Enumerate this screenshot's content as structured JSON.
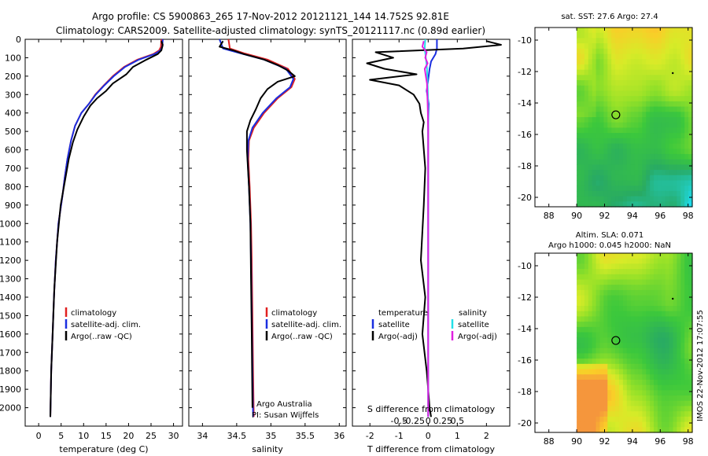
{
  "title_line1": "Argo profile: CS 5900863_265 17-Nov-2012 20121121_144 14.752S 92.81E",
  "title_line2": "Climatology: CARS2009. Satellite-adjusted climatology: synTS_20121117.nc (0.89d earlier)",
  "colors": {
    "climatology": "#e02020",
    "satellite": "#1a2ee0",
    "argo": "#000000",
    "sat_salinity": "#22e0e8",
    "argo_salinity": "#e020e0"
  },
  "chart_data": [
    {
      "id": "temperature",
      "type": "line",
      "xlabel": "temperature (deg C)",
      "ylabel": "",
      "xlim": [
        -3,
        32
      ],
      "ylim": [
        2100,
        0
      ],
      "xticks": [
        "0",
        "5",
        "10",
        "15",
        "20",
        "25",
        "30"
      ],
      "xtick_values": [
        0,
        5,
        10,
        15,
        20,
        25,
        30
      ],
      "yticks": [
        "0",
        "100",
        "200",
        "300",
        "400",
        "500",
        "600",
        "700",
        "800",
        "900",
        "1000",
        "1100",
        "1200",
        "1300",
        "1400",
        "1500",
        "1600",
        "1700",
        "1800",
        "1900",
        "2000"
      ],
      "ytick_values": [
        0,
        100,
        200,
        300,
        400,
        500,
        600,
        700,
        800,
        900,
        1000,
        1100,
        1200,
        1300,
        1400,
        1500,
        1600,
        1700,
        1800,
        1900,
        2000
      ],
      "legend": [
        "climatology",
        "satellite-adj. clim.",
        "Argo(..raw -QC)"
      ],
      "series": [
        {
          "name": "climatology",
          "color": "#e02020",
          "x": [
            27.3,
            27.2,
            26.8,
            25.5,
            22,
            19,
            16.5,
            14.5,
            12.6,
            11.2,
            9.5,
            8.1,
            7.2,
            6.4,
            5.8,
            5.3,
            4.4,
            3.8,
            3.4,
            3.1,
            2.8,
            2.6
          ],
          "y": [
            0,
            40,
            60,
            80,
            110,
            150,
            200,
            250,
            300,
            350,
            400,
            470,
            550,
            650,
            750,
            850,
            1000,
            1200,
            1400,
            1600,
            1800,
            2050
          ]
        },
        {
          "name": "satellite-adj. clim.",
          "color": "#1a2ee0",
          "x": [
            27.6,
            27.5,
            27.1,
            25.8,
            22.3,
            19.2,
            16.7,
            14.6,
            12.7,
            11.2,
            9.5,
            8.1,
            7.2,
            6.4,
            5.8,
            5.3,
            4.4,
            3.8,
            3.4,
            3.1,
            2.8,
            2.6
          ],
          "y": [
            0,
            40,
            60,
            80,
            110,
            150,
            200,
            250,
            300,
            350,
            400,
            470,
            550,
            650,
            750,
            850,
            1000,
            1200,
            1400,
            1600,
            1800,
            2050
          ]
        },
        {
          "name": "Argo(..raw -QC)",
          "color": "#000000",
          "x": [
            27.3,
            27.6,
            27.3,
            26.5,
            24,
            21,
            19.5,
            16.5,
            15,
            13,
            11.5,
            10,
            8.6,
            7.6,
            6.7,
            5.9,
            4.9,
            4.1,
            3.5,
            3.1,
            2.8,
            2.6
          ],
          "y": [
            10,
            30,
            60,
            80,
            110,
            150,
            190,
            240,
            280,
            320,
            360,
            420,
            490,
            560,
            650,
            760,
            900,
            1100,
            1350,
            1600,
            1800,
            2050
          ]
        }
      ]
    },
    {
      "id": "salinity",
      "type": "line",
      "xlabel": "salinity",
      "ylabel": "",
      "xlim": [
        33.8,
        36.1
      ],
      "ylim": [
        2100,
        0
      ],
      "xticks": [
        "34",
        "34.5",
        "35",
        "35.5",
        "36"
      ],
      "xtick_values": [
        34,
        34.5,
        35,
        35.5,
        36
      ],
      "legend": [
        "climatology",
        "satellite-adj. clim.",
        "Argo(..raw -QC)"
      ],
      "annotation": [
        "Argo Australia",
        "PI: Susan Wijffels"
      ],
      "series": [
        {
          "name": "climatology",
          "color": "#e02020",
          "x": [
            34.38,
            34.4,
            34.6,
            34.95,
            35.25,
            35.35,
            35.3,
            35.1,
            34.9,
            34.75,
            34.68,
            34.67,
            34.69,
            34.71,
            34.72,
            34.73,
            34.74,
            34.75
          ],
          "y": [
            0,
            50,
            75,
            110,
            160,
            215,
            260,
            320,
            400,
            480,
            550,
            650,
            800,
            1000,
            1200,
            1500,
            1800,
            2050
          ]
        },
        {
          "name": "satellite-adj. clim.",
          "color": "#1a2ee0",
          "x": [
            34.25,
            34.3,
            34.55,
            34.9,
            35.22,
            35.33,
            35.28,
            35.08,
            34.88,
            34.73,
            34.67,
            34.66,
            34.68,
            34.7,
            34.71,
            34.72,
            34.73,
            34.74
          ],
          "y": [
            0,
            50,
            75,
            110,
            160,
            215,
            260,
            320,
            400,
            480,
            550,
            650,
            800,
            1000,
            1200,
            1500,
            1800,
            2050
          ]
        },
        {
          "name": "Argo(..raw -QC)",
          "color": "#000000",
          "x": [
            34.3,
            34.25,
            34.45,
            34.6,
            34.9,
            35.1,
            35.25,
            35.35,
            35.1,
            34.95,
            34.85,
            34.78,
            34.7,
            34.65,
            34.65,
            34.68,
            34.7,
            34.71,
            34.72,
            34.73
          ],
          "y": [
            10,
            40,
            60,
            80,
            110,
            140,
            170,
            200,
            230,
            270,
            320,
            380,
            440,
            500,
            600,
            800,
            1000,
            1300,
            1600,
            2000
          ]
        }
      ]
    },
    {
      "id": "difference",
      "type": "line",
      "xlabel": "T difference from climatology",
      "ylabel": "",
      "xlabel_top": "S difference from climatology",
      "xlim": [
        -2.6,
        2.8
      ],
      "ylim": [
        2100,
        0
      ],
      "xticks": [
        "-2",
        "-1",
        "0",
        "1",
        "2"
      ],
      "xtick_values": [
        -2,
        -1,
        0,
        1,
        2
      ],
      "sticks": [
        "-0.5",
        "-0.25",
        "0",
        "0.25",
        "0.5"
      ],
      "stick_values": [
        -0.5,
        -0.25,
        0,
        0.25,
        0.5
      ],
      "legend_temperature": {
        "title": "temperature",
        "items": [
          "satellite",
          "Argo(-adj)"
        ]
      },
      "legend_salinity": {
        "title": "salinity",
        "items": [
          "satellite",
          "Argo(-adj)"
        ]
      },
      "series": [
        {
          "name": "temperature satellite",
          "color": "#1a2ee0",
          "x": [
            0.3,
            0.3,
            0.25,
            0.1,
            0.05,
            0.0,
            -0.05,
            0.02,
            0.0,
            0.0,
            0.0,
            0.0,
            0.0
          ],
          "y": [
            0,
            50,
            80,
            120,
            160,
            220,
            280,
            350,
            450,
            600,
            900,
            1400,
            2050
          ]
        },
        {
          "name": "temperature Argo(-adj)",
          "color": "#000000",
          "x": [
            2.0,
            2.5,
            1.2,
            -1.8,
            -1.2,
            -2.1,
            -1.5,
            -0.4,
            -2.0,
            -1.0,
            -0.5,
            -0.3,
            -0.25,
            -0.15,
            -0.2,
            -0.1,
            -0.15,
            -0.25,
            -0.1,
            -0.2,
            -0.05,
            0.0,
            0.05,
            0.1
          ],
          "y": [
            10,
            30,
            50,
            70,
            100,
            130,
            160,
            190,
            220,
            250,
            300,
            350,
            400,
            450,
            500,
            700,
            900,
            1200,
            1400,
            1600,
            1800,
            1900,
            2000,
            2050
          ]
        },
        {
          "name": "salinity satellite",
          "color": "#22e0e8",
          "x": [
            -0.1,
            -0.12,
            -0.08,
            -0.04,
            -0.02,
            0.0,
            0.0,
            0.0,
            0.0,
            0.0
          ],
          "y": [
            0,
            50,
            100,
            160,
            250,
            350,
            500,
            900,
            1500,
            2050
          ]
        },
        {
          "name": "salinity Argo(-adj)",
          "color": "#e020e0",
          "x": [
            -0.15,
            -0.2,
            -0.05,
            -0.1,
            -0.02,
            -0.12,
            -0.08,
            -0.04,
            -0.03,
            -0.02,
            -0.01,
            0.0,
            0.0,
            0.0
          ],
          "y": [
            10,
            40,
            70,
            100,
            130,
            160,
            200,
            240,
            300,
            350,
            400,
            500,
            800,
            2050
          ]
        }
      ]
    },
    {
      "id": "sst_map",
      "type": "heatmap",
      "title": "sat. SST: 27.6 Argo: 27.4",
      "xlim": [
        87,
        98.3
      ],
      "ylim": [
        -20.6,
        -9.2
      ],
      "xticks": [
        "88",
        "90",
        "92",
        "94",
        "96",
        "98"
      ],
      "xtick_values": [
        88,
        90,
        92,
        94,
        96,
        98
      ],
      "yticks": [
        "-10",
        "-12",
        "-14",
        "-16",
        "-18",
        "-20"
      ],
      "ytick_values": [
        -10,
        -12,
        -14,
        -16,
        -18,
        -20
      ],
      "marker": {
        "lon": 92.81,
        "lat": -14.752
      }
    },
    {
      "id": "sla_map",
      "type": "heatmap",
      "title_line1": "Altim. SLA: 0.071",
      "title_line2": "Argo h1000: 0.045 h2000: NaN",
      "xlim": [
        87,
        98.3
      ],
      "ylim": [
        -20.6,
        -9.2
      ],
      "xticks": [
        "88",
        "90",
        "92",
        "94",
        "96",
        "98"
      ],
      "xtick_values": [
        88,
        90,
        92,
        94,
        96,
        98
      ],
      "yticks": [
        "-10",
        "-12",
        "-14",
        "-16",
        "-18",
        "-20"
      ],
      "ytick_values": [
        -10,
        -12,
        -14,
        -16,
        -18,
        -20
      ],
      "marker": {
        "lon": 92.81,
        "lat": -14.752
      }
    }
  ],
  "side_label": "IMOS 22-Nov-2012 17:07:55"
}
